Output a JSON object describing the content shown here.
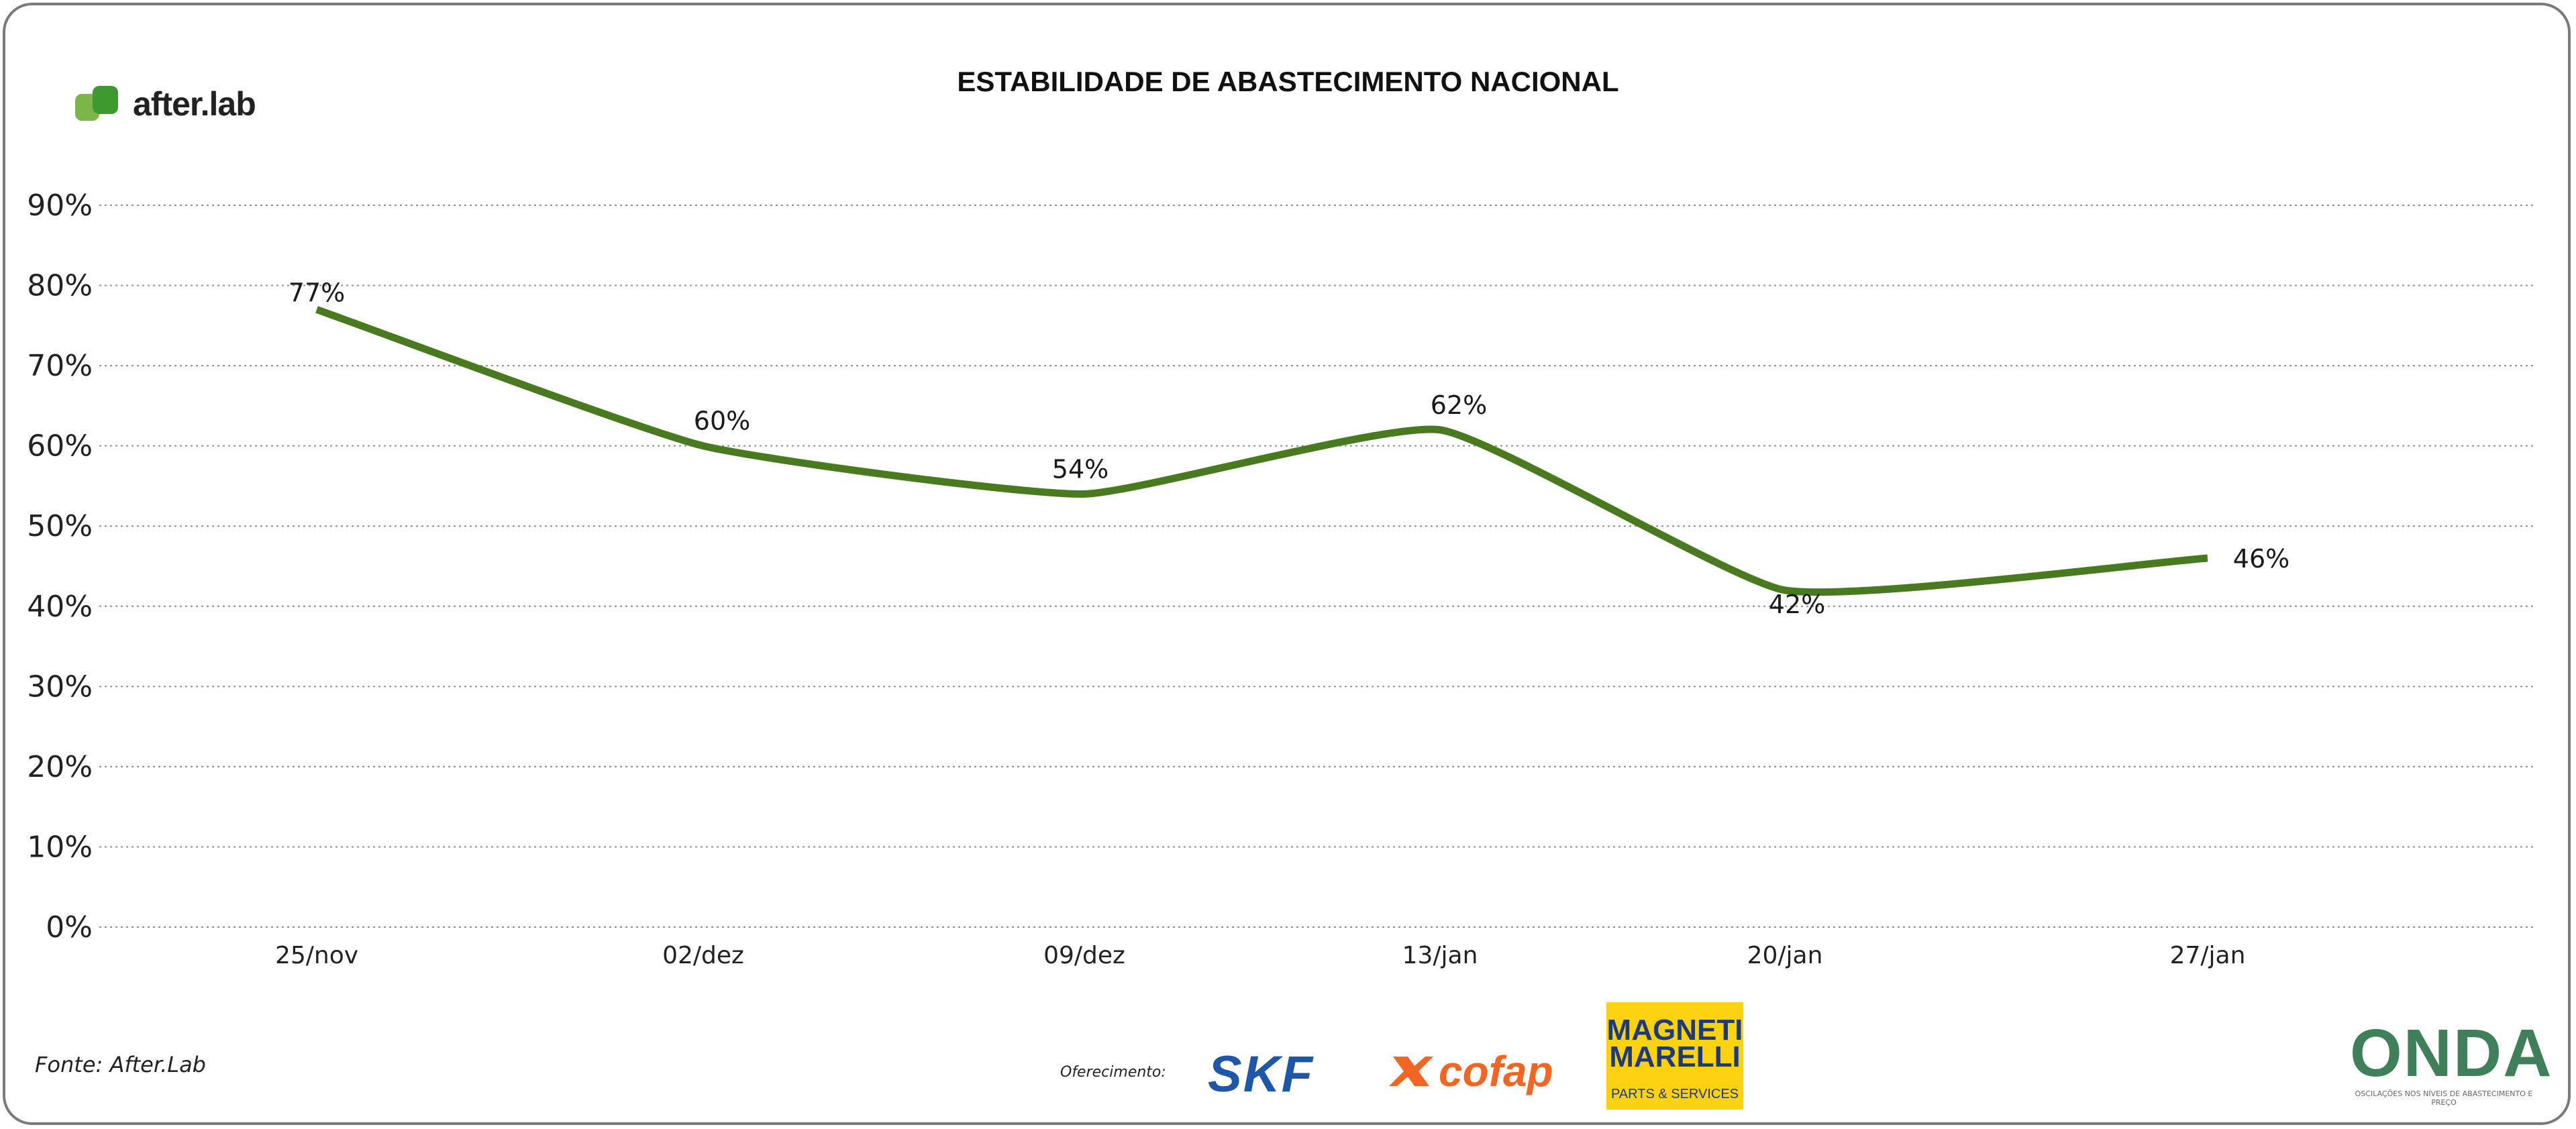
{
  "brand": {
    "name": "after.lab",
    "color": "#7ab648"
  },
  "chart_data": {
    "type": "line",
    "title": "ESTABILIDADE DE ABASTECIMENTO NACIONAL",
    "categories": [
      "25/nov",
      "02/dez",
      "09/dez",
      "13/jan",
      "20/jan",
      "27/jan"
    ],
    "series": [
      {
        "name": "Estabilidade",
        "values": [
          77,
          60,
          54,
          62,
          42,
          46
        ],
        "color": "#4a7a1f"
      }
    ],
    "data_labels": [
      "77%",
      "60%",
      "54%",
      "62%",
      "42%",
      "46%"
    ],
    "yticks": [
      "0%",
      "10%",
      "20%",
      "30%",
      "40%",
      "50%",
      "60%",
      "70%",
      "80%",
      "90%"
    ],
    "ylim": [
      0,
      90
    ],
    "xlabel": "",
    "ylabel": "",
    "grid": true,
    "grid_style": "dotted"
  },
  "footer": {
    "source": "Fonte: After.Lab",
    "offer_label": "Oferecimento:",
    "sponsors": {
      "skf": "SKF",
      "cofap": "cofap",
      "marelli_name": "MAGNETI MARELLI",
      "marelli_sub": "PARTS & SERVICES",
      "onda_name": "ONDA",
      "onda_sub": "OSCILAÇÕES NOS NÍVEIS DE ABASTECIMENTO E PREÇO"
    },
    "colors": {
      "skf": "#1e56a8",
      "cofap": "#f26522",
      "marelli_bg": "#fcd20f",
      "onda": "#3f7f5a"
    }
  }
}
